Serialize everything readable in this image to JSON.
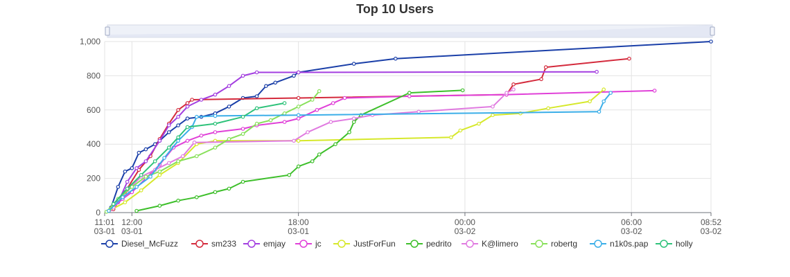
{
  "chart_data": {
    "type": "line",
    "title": "Top 10 Users",
    "y_axis": {
      "min": 0,
      "max": 1000,
      "ticks": [
        "0",
        "200",
        "400",
        "600",
        "800",
        "1,000"
      ]
    },
    "x_axis": {
      "min": "03-01 11:01",
      "max": "03-02 08:52",
      "ticks": [
        {
          "time": "11:01",
          "date": "03-01"
        },
        {
          "time": "12:00",
          "date": "03-01"
        },
        {
          "time": "18:00",
          "date": "03-01"
        },
        {
          "time": "00:00",
          "date": "03-02"
        },
        {
          "time": "06:00",
          "date": "03-02"
        },
        {
          "time": "08:52",
          "date": "03-02"
        }
      ]
    },
    "grid": true,
    "legend_position": "bottom",
    "data_zoom": "top",
    "x_unit_note_hidden": true,
    "series": [
      {
        "name": "Diesel_McFuzz",
        "color": "#1a3fa8",
        "points": [
          [
            "03-01 11:15",
            30
          ],
          [
            "03-01 11:30",
            150
          ],
          [
            "03-01 11:45",
            240
          ],
          [
            "03-01 12:00",
            260
          ],
          [
            "03-01 12:15",
            350
          ],
          [
            "03-01 12:30",
            370
          ],
          [
            "03-01 12:50",
            400
          ],
          [
            "03-01 13:00",
            420
          ],
          [
            "03-01 13:20",
            470
          ],
          [
            "03-01 13:40",
            510
          ],
          [
            "03-01 14:00",
            550
          ],
          [
            "03-01 14:30",
            560
          ],
          [
            "03-01 15:00",
            580
          ],
          [
            "03-01 15:30",
            620
          ],
          [
            "03-01 16:00",
            670
          ],
          [
            "03-01 16:30",
            680
          ],
          [
            "03-01 16:50",
            740
          ],
          [
            "03-01 17:10",
            760
          ],
          [
            "03-01 17:50",
            800
          ],
          [
            "03-01 18:00",
            820
          ],
          [
            "03-01 20:00",
            870
          ],
          [
            "03-01 21:30",
            900
          ],
          [
            "03-02 08:52",
            1000
          ]
        ]
      },
      {
        "name": "sm233",
        "color": "#d42a3c",
        "points": [
          [
            "03-01 11:20",
            20
          ],
          [
            "03-01 11:45",
            120
          ],
          [
            "03-01 12:15",
            250
          ],
          [
            "03-01 12:40",
            330
          ],
          [
            "03-01 13:00",
            430
          ],
          [
            "03-01 13:20",
            520
          ],
          [
            "03-01 13:40",
            600
          ],
          [
            "03-01 14:00",
            640
          ],
          [
            "03-01 14:10",
            660
          ],
          [
            "03-01 18:00",
            670
          ],
          [
            "03-02 01:30",
            690
          ],
          [
            "03-02 01:45",
            750
          ],
          [
            "03-02 02:45",
            780
          ],
          [
            "03-02 02:55",
            850
          ],
          [
            "03-02 05:55",
            900
          ]
        ]
      },
      {
        "name": "emjay",
        "color": "#a33ee0",
        "points": [
          [
            "03-01 11:10",
            10
          ],
          [
            "03-01 11:30",
            60
          ],
          [
            "03-01 11:50",
            180
          ],
          [
            "03-01 12:10",
            260
          ],
          [
            "03-01 12:30",
            300
          ],
          [
            "03-01 13:00",
            420
          ],
          [
            "03-01 13:20",
            510
          ],
          [
            "03-01 13:40",
            560
          ],
          [
            "03-01 14:00",
            620
          ],
          [
            "03-01 14:30",
            660
          ],
          [
            "03-01 15:00",
            690
          ],
          [
            "03-01 15:30",
            740
          ],
          [
            "03-01 16:00",
            800
          ],
          [
            "03-01 16:30",
            820
          ],
          [
            "03-01 18:00",
            820
          ],
          [
            "03-02 04:45",
            823
          ]
        ]
      },
      {
        "name": "jc",
        "color": "#e040d8",
        "points": [
          [
            "03-01 11:15",
            20
          ],
          [
            "03-01 11:40",
            80
          ],
          [
            "03-01 12:00",
            120
          ],
          [
            "03-01 12:30",
            200
          ],
          [
            "03-01 13:00",
            280
          ],
          [
            "03-01 13:30",
            380
          ],
          [
            "03-01 14:00",
            420
          ],
          [
            "03-01 14:30",
            450
          ],
          [
            "03-01 15:00",
            470
          ],
          [
            "03-01 16:00",
            490
          ],
          [
            "03-01 16:30",
            510
          ],
          [
            "03-01 17:30",
            530
          ],
          [
            "03-01 18:00",
            550
          ],
          [
            "03-01 18:40",
            600
          ],
          [
            "03-01 19:15",
            640
          ],
          [
            "03-01 19:40",
            670
          ],
          [
            "03-01 22:00",
            680
          ],
          [
            "03-02 01:30",
            690
          ],
          [
            "03-02 06:50",
            713
          ]
        ]
      },
      {
        "name": "JustForFun",
        "color": "#d6e82a",
        "points": [
          [
            "03-01 11:10",
            10
          ],
          [
            "03-01 11:45",
            60
          ],
          [
            "03-01 12:20",
            130
          ],
          [
            "03-01 13:00",
            220
          ],
          [
            "03-01 13:40",
            290
          ],
          [
            "03-01 14:20",
            400
          ],
          [
            "03-01 15:00",
            420
          ],
          [
            "03-01 18:00",
            420
          ],
          [
            "03-01 23:30",
            440
          ],
          [
            "03-01 23:50",
            480
          ],
          [
            "03-02 00:30",
            520
          ],
          [
            "03-02 01:00",
            570
          ],
          [
            "03-02 02:00",
            580
          ],
          [
            "03-02 03:00",
            610
          ],
          [
            "03-02 04:30",
            650
          ],
          [
            "03-02 05:00",
            720
          ]
        ]
      },
      {
        "name": "pedrito",
        "color": "#3dbf2a",
        "points": [
          [
            "03-01 12:10",
            10
          ],
          [
            "03-01 13:00",
            40
          ],
          [
            "03-01 13:40",
            70
          ],
          [
            "03-01 14:20",
            90
          ],
          [
            "03-01 15:00",
            120
          ],
          [
            "03-01 15:30",
            140
          ],
          [
            "03-01 16:00",
            180
          ],
          [
            "03-01 17:40",
            220
          ],
          [
            "03-01 18:00",
            270
          ],
          [
            "03-01 18:30",
            300
          ],
          [
            "03-01 18:45",
            340
          ],
          [
            "03-01 19:20",
            400
          ],
          [
            "03-01 19:50",
            470
          ],
          [
            "03-01 20:00",
            530
          ],
          [
            "03-01 20:15",
            570
          ],
          [
            "03-01 22:00",
            700
          ],
          [
            "03-01 23:55",
            715
          ]
        ]
      },
      {
        "name": "K@limero",
        "color": "#e07ae0",
        "points": [
          [
            "03-01 11:20",
            30
          ],
          [
            "03-01 11:50",
            130
          ],
          [
            "03-01 12:20",
            210
          ],
          [
            "03-01 12:50",
            250
          ],
          [
            "03-01 13:20",
            290
          ],
          [
            "03-01 13:50",
            330
          ],
          [
            "03-01 14:15",
            410
          ],
          [
            "03-01 17:50",
            420
          ],
          [
            "03-01 18:20",
            470
          ],
          [
            "03-01 19:10",
            530
          ],
          [
            "03-01 20:00",
            550
          ],
          [
            "03-01 20:40",
            570
          ],
          [
            "03-01 22:20",
            590
          ],
          [
            "03-02 01:00",
            620
          ],
          [
            "03-02 01:30",
            700
          ],
          [
            "03-02 01:45",
            720
          ]
        ]
      },
      {
        "name": "robertg",
        "color": "#88e05a",
        "points": [
          [
            "03-01 11:05",
            5
          ],
          [
            "03-01 11:30",
            80
          ],
          [
            "03-01 12:00",
            150
          ],
          [
            "03-01 12:30",
            210
          ],
          [
            "03-01 13:00",
            240
          ],
          [
            "03-01 13:40",
            300
          ],
          [
            "03-01 14:20",
            330
          ],
          [
            "03-01 15:00",
            380
          ],
          [
            "03-01 15:30",
            430
          ],
          [
            "03-01 16:00",
            460
          ],
          [
            "03-01 16:30",
            520
          ],
          [
            "03-01 17:00",
            540
          ],
          [
            "03-01 17:30",
            580
          ],
          [
            "03-01 18:00",
            620
          ],
          [
            "03-01 18:30",
            660
          ],
          [
            "03-01 18:45",
            710
          ]
        ]
      },
      {
        "name": "n1k0s.pap",
        "color": "#3aaee8",
        "points": [
          [
            "03-01 11:10",
            10
          ],
          [
            "03-01 11:40",
            90
          ],
          [
            "03-01 12:10",
            150
          ],
          [
            "03-01 12:40",
            210
          ],
          [
            "03-01 13:10",
            320
          ],
          [
            "03-01 13:40",
            420
          ],
          [
            "03-01 14:10",
            500
          ],
          [
            "03-01 14:20",
            560
          ],
          [
            "03-01 15:00",
            565
          ],
          [
            "03-01 18:00",
            570
          ],
          [
            "03-02 04:50",
            590
          ],
          [
            "03-02 05:00",
            650
          ],
          [
            "03-02 05:15",
            700
          ]
        ]
      },
      {
        "name": "holly",
        "color": "#2ec27a",
        "points": [
          [
            "03-01 11:20",
            50
          ],
          [
            "03-01 11:50",
            140
          ],
          [
            "03-01 12:20",
            220
          ],
          [
            "03-01 12:50",
            300
          ],
          [
            "03-01 13:20",
            380
          ],
          [
            "03-01 13:40",
            440
          ],
          [
            "03-01 14:00",
            500
          ],
          [
            "03-01 15:00",
            520
          ],
          [
            "03-01 16:00",
            560
          ],
          [
            "03-01 16:30",
            610
          ],
          [
            "03-01 17:30",
            640
          ]
        ]
      }
    ]
  }
}
